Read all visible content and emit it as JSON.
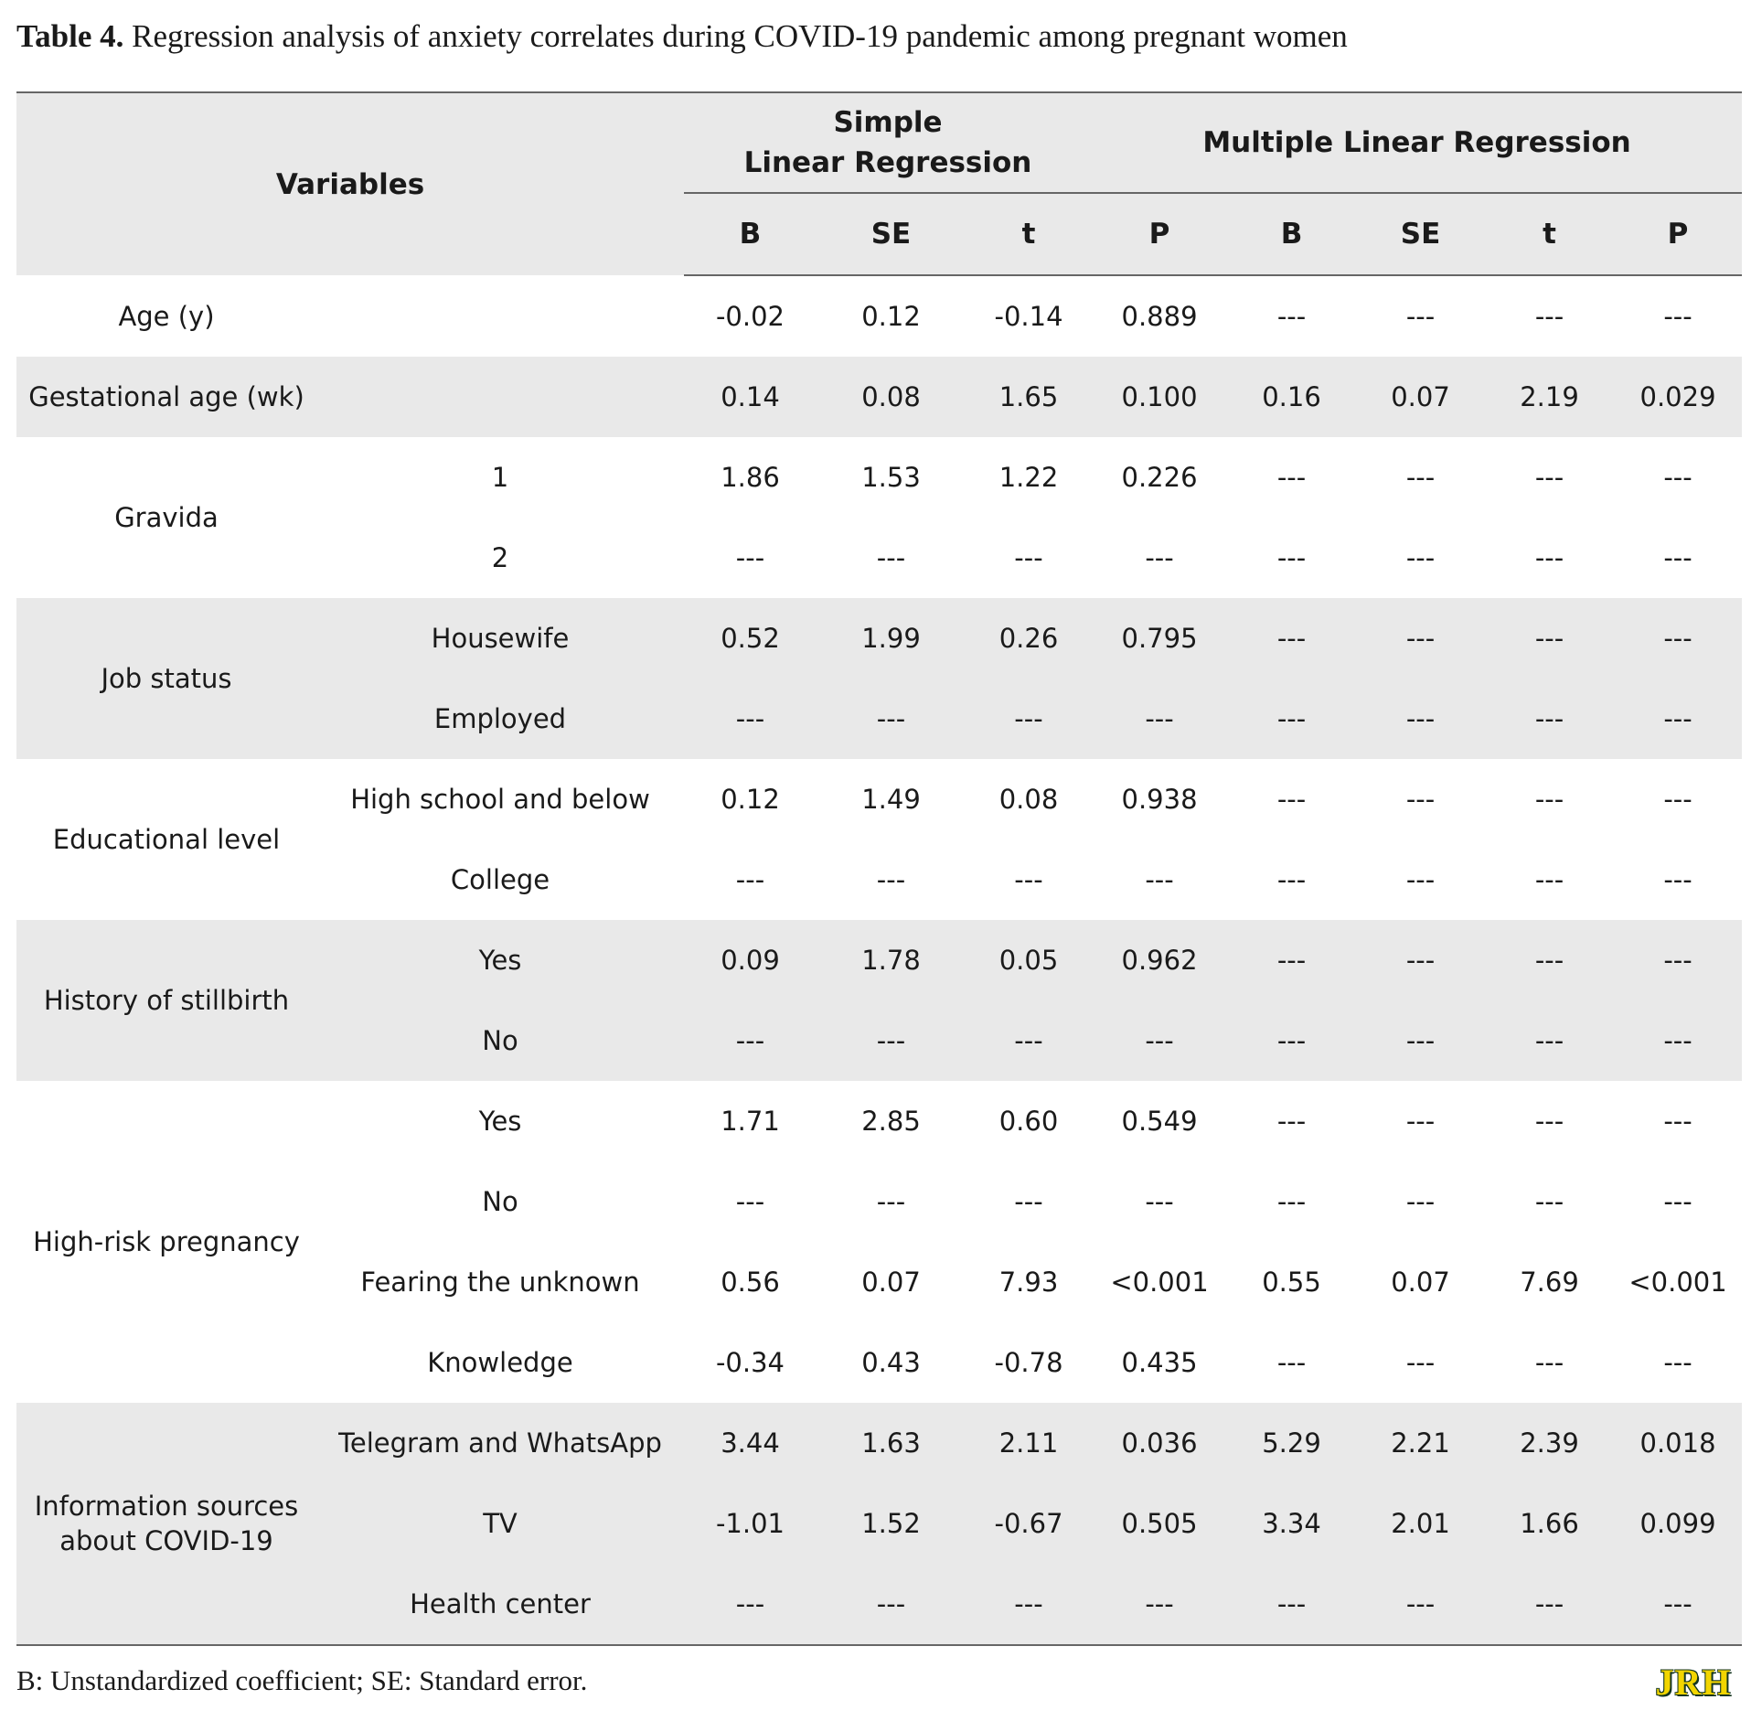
{
  "caption": {
    "label": "Table 4.",
    "text": " Regression analysis of anxiety correlates during COVID-19 pandemic among pregnant women"
  },
  "header": {
    "variables": "Variables",
    "simple_line1": "Simple",
    "simple_line2": "Linear Regression",
    "multiple": "Multiple Linear Regression",
    "cols": [
      "B",
      "SE",
      "t",
      "P",
      "B",
      "SE",
      "t",
      "P"
    ]
  },
  "rows": [
    {
      "var": "Age (y)",
      "sub": "",
      "vals": [
        "-0.02",
        "0.12",
        "-0.14",
        "0.889",
        "---",
        "---",
        "---",
        "---"
      ]
    },
    {
      "var": "Gestational age (wk)",
      "sub": "",
      "vals": [
        "0.14",
        "0.08",
        "1.65",
        "0.100",
        "0.16",
        "0.07",
        "2.19",
        "0.029"
      ]
    },
    {
      "var": "Gravida",
      "sub": "1",
      "vals": [
        "1.86",
        "1.53",
        "1.22",
        "0.226",
        "---",
        "---",
        "---",
        "---"
      ]
    },
    {
      "var": "",
      "sub": "2",
      "vals": [
        "---",
        "---",
        "---",
        "---",
        "---",
        "---",
        "---",
        "---"
      ]
    },
    {
      "var": "Job status",
      "sub": "Housewife",
      "vals": [
        "0.52",
        "1.99",
        "0.26",
        "0.795",
        "---",
        "---",
        "---",
        "---"
      ]
    },
    {
      "var": "",
      "sub": "Employed",
      "vals": [
        "---",
        "---",
        "---",
        "---",
        "---",
        "---",
        "---",
        "---"
      ]
    },
    {
      "var": "Educational level",
      "sub": "High school and below",
      "vals": [
        "0.12",
        "1.49",
        "0.08",
        "0.938",
        "---",
        "---",
        "---",
        "---"
      ]
    },
    {
      "var": "",
      "sub": "College",
      "vals": [
        "---",
        "---",
        "---",
        "---",
        "---",
        "---",
        "---",
        "---"
      ]
    },
    {
      "var": "History of stillbirth",
      "sub": "Yes",
      "vals": [
        "0.09",
        "1.78",
        "0.05",
        "0.962",
        "---",
        "---",
        "---",
        "---"
      ]
    },
    {
      "var": "",
      "sub": "No",
      "vals": [
        "---",
        "---",
        "---",
        "---",
        "---",
        "---",
        "---",
        "---"
      ]
    },
    {
      "var": "High-risk pregnancy",
      "sub": "Yes",
      "vals": [
        "1.71",
        "2.85",
        "0.60",
        "0.549",
        "---",
        "---",
        "---",
        "---"
      ]
    },
    {
      "var": "",
      "sub": "No",
      "vals": [
        "---",
        "---",
        "---",
        "---",
        "---",
        "---",
        "---",
        "---"
      ]
    },
    {
      "var": "",
      "sub": "Fearing the unknown",
      "vals": [
        "0.56",
        "0.07",
        "7.93",
        "<0.001",
        "0.55",
        "0.07",
        "7.69",
        "<0.001"
      ]
    },
    {
      "var": "",
      "sub": "Knowledge",
      "vals": [
        "-0.34",
        "0.43",
        "-0.78",
        "0.435",
        "---",
        "---",
        "---",
        "---"
      ]
    },
    {
      "var": "Information sources about COVID-19",
      "sub": "Telegram and WhatsApp",
      "vals": [
        "3.44",
        "1.63",
        "2.11",
        "0.036",
        "5.29",
        "2.21",
        "2.39",
        "0.018"
      ]
    },
    {
      "var": "",
      "sub": "TV",
      "vals": [
        "-1.01",
        "1.52",
        "-0.67",
        "0.505",
        "3.34",
        "2.01",
        "1.66",
        "0.099"
      ]
    },
    {
      "var": "",
      "sub": "Health center",
      "vals": [
        "---",
        "---",
        "---",
        "---",
        "---",
        "---",
        "---",
        "---"
      ]
    }
  ],
  "footnote": "B: Unstandardized coefficient; SE: Standard error.",
  "logo_text": "JRH"
}
